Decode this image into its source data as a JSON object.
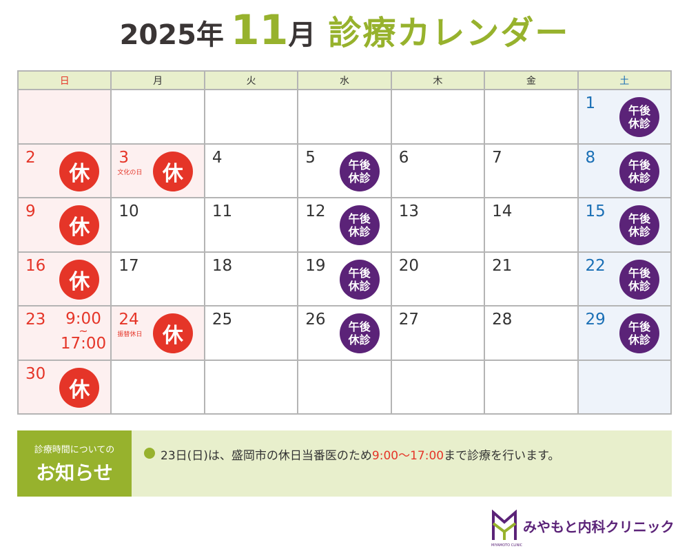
{
  "header": {
    "year": "2025年",
    "month_num": "11",
    "month_unit": "月",
    "title": "診療カレンダー"
  },
  "calendar": {
    "weekdays": [
      "日",
      "月",
      "火",
      "水",
      "木",
      "金",
      "土"
    ],
    "weeks": [
      [
        null,
        null,
        null,
        null,
        null,
        null,
        {
          "day": "1",
          "badge": "午後休診"
        }
      ],
      [
        {
          "day": "2",
          "badge": "休"
        },
        {
          "day": "3",
          "badge": "休",
          "note": "文化の日",
          "holiday": true
        },
        {
          "day": "4"
        },
        {
          "day": "5",
          "badge": "午後休診"
        },
        {
          "day": "6"
        },
        {
          "day": "7"
        },
        {
          "day": "8",
          "badge": "午後休診"
        }
      ],
      [
        {
          "day": "9",
          "badge": "休"
        },
        {
          "day": "10"
        },
        {
          "day": "11"
        },
        {
          "day": "12",
          "badge": "午後休診"
        },
        {
          "day": "13"
        },
        {
          "day": "14"
        },
        {
          "day": "15",
          "badge": "午後休診"
        }
      ],
      [
        {
          "day": "16",
          "badge": "休"
        },
        {
          "day": "17"
        },
        {
          "day": "18"
        },
        {
          "day": "19",
          "badge": "午後休診"
        },
        {
          "day": "20"
        },
        {
          "day": "21"
        },
        {
          "day": "22",
          "badge": "午後休診"
        }
      ],
      [
        {
          "day": "23",
          "hours_from": "9:00",
          "hours_sep": "~",
          "hours_to": "17:00"
        },
        {
          "day": "24",
          "badge": "休",
          "note": "振替休日",
          "holiday": true
        },
        {
          "day": "25"
        },
        {
          "day": "26",
          "badge": "午後休診"
        },
        {
          "day": "27"
        },
        {
          "day": "28"
        },
        {
          "day": "29",
          "badge": "午後休診"
        }
      ],
      [
        {
          "day": "30",
          "badge": "休"
        },
        null,
        null,
        null,
        null,
        null,
        null
      ]
    ]
  },
  "notice": {
    "label_small": "診療時間についての",
    "label_big": "お知らせ",
    "message_pre": "23日(日)は、盛岡市の休日当番医のため",
    "message_hours": "9:00〜17:00",
    "message_post": "まで診療を行います。"
  },
  "logo": {
    "name": "みやもと内科クリニック",
    "sub": "MIYAMOTO CLINIC"
  },
  "colors": {
    "green": "#97b22d",
    "red": "#e53528",
    "purple": "#5b2378",
    "blue": "#1a6fb5"
  }
}
